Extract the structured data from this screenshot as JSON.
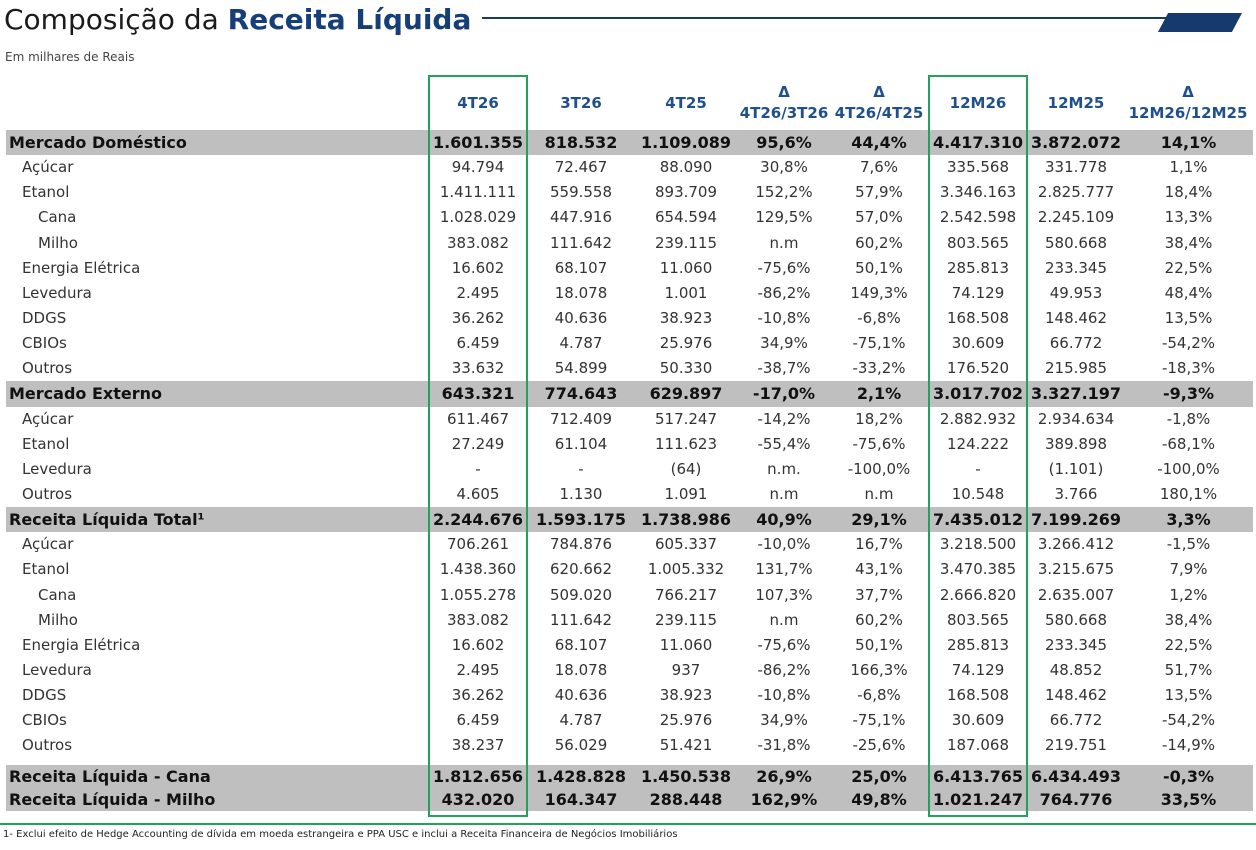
{
  "title": {
    "normal": "Composição da",
    "bold": "Receita Líquida"
  },
  "subtitle": "Em milhares de Reais",
  "colors": {
    "accent": "#173a6e",
    "highlight_box": "#23a05c",
    "section_bg": "#bfbfbf",
    "header_text": "#1f4f8e"
  },
  "headers": {
    "c1": [
      "4T26"
    ],
    "c2": [
      "3T26"
    ],
    "c3": [
      "4T25"
    ],
    "c4": [
      "Δ",
      "4T26/3T26"
    ],
    "c5": [
      "Δ",
      "4T26/4T25"
    ],
    "c6": [
      "12M26"
    ],
    "c7": [
      "12M25"
    ],
    "c8": [
      "Δ",
      "12M26/12M25"
    ]
  },
  "rows": [
    {
      "label": "Mercado Doméstico",
      "values": [
        "1.601.355",
        "818.532",
        "1.109.089",
        "95,6%",
        "44,4%",
        "4.417.310",
        "3.872.072",
        "14,1%"
      ]
    },
    {
      "label": "Açúcar",
      "values": [
        "94.794",
        "72.467",
        "88.090",
        "30,8%",
        "7,6%",
        "335.568",
        "331.778",
        "1,1%"
      ]
    },
    {
      "label": "Etanol",
      "values": [
        "1.411.111",
        "559.558",
        "893.709",
        "152,2%",
        "57,9%",
        "3.346.163",
        "2.825.777",
        "18,4%"
      ]
    },
    {
      "label": "Cana",
      "values": [
        "1.028.029",
        "447.916",
        "654.594",
        "129,5%",
        "57,0%",
        "2.542.598",
        "2.245.109",
        "13,3%"
      ]
    },
    {
      "label": "Milho",
      "values": [
        "383.082",
        "111.642",
        "239.115",
        "n.m",
        "60,2%",
        "803.565",
        "580.668",
        "38,4%"
      ]
    },
    {
      "label": "Energia Elétrica",
      "values": [
        "16.602",
        "68.107",
        "11.060",
        "-75,6%",
        "50,1%",
        "285.813",
        "233.345",
        "22,5%"
      ]
    },
    {
      "label": "Levedura",
      "values": [
        "2.495",
        "18.078",
        "1.001",
        "-86,2%",
        "149,3%",
        "74.129",
        "49.953",
        "48,4%"
      ]
    },
    {
      "label": "DDGS",
      "values": [
        "36.262",
        "40.636",
        "38.923",
        "-10,8%",
        "-6,8%",
        "168.508",
        "148.462",
        "13,5%"
      ]
    },
    {
      "label": "CBIOs",
      "values": [
        "6.459",
        "4.787",
        "25.976",
        "34,9%",
        "-75,1%",
        "30.609",
        "66.772",
        "-54,2%"
      ]
    },
    {
      "label": "Outros",
      "values": [
        "33.632",
        "54.899",
        "50.330",
        "-38,7%",
        "-33,2%",
        "176.520",
        "215.985",
        "-18,3%"
      ]
    },
    {
      "label": "Mercado Externo",
      "values": [
        "643.321",
        "774.643",
        "629.897",
        "-17,0%",
        "2,1%",
        "3.017.702",
        "3.327.197",
        "-9,3%"
      ]
    },
    {
      "label": "Açúcar",
      "values": [
        "611.467",
        "712.409",
        "517.247",
        "-14,2%",
        "18,2%",
        "2.882.932",
        "2.934.634",
        "-1,8%"
      ]
    },
    {
      "label": "Etanol",
      "values": [
        "27.249",
        "61.104",
        "111.623",
        "-55,4%",
        "-75,6%",
        "124.222",
        "389.898",
        "-68,1%"
      ]
    },
    {
      "label": "Levedura",
      "values": [
        "-",
        "-",
        "(64)",
        "n.m.",
        "-100,0%",
        "-",
        "(1.101)",
        "-100,0%"
      ]
    },
    {
      "label": "Outros",
      "values": [
        "4.605",
        "1.130",
        "1.091",
        "n.m",
        "n.m",
        "10.548",
        "3.766",
        "180,1%"
      ]
    },
    {
      "label": "Receita Líquida Total¹",
      "values": [
        "2.244.676",
        "1.593.175",
        "1.738.986",
        "40,9%",
        "29,1%",
        "7.435.012",
        "7.199.269",
        "3,3%"
      ]
    },
    {
      "label": "Açúcar",
      "values": [
        "706.261",
        "784.876",
        "605.337",
        "-10,0%",
        "16,7%",
        "3.218.500",
        "3.266.412",
        "-1,5%"
      ]
    },
    {
      "label": "Etanol",
      "values": [
        "1.438.360",
        "620.662",
        "1.005.332",
        "131,7%",
        "43,1%",
        "3.470.385",
        "3.215.675",
        "7,9%"
      ]
    },
    {
      "label": "Cana",
      "values": [
        "1.055.278",
        "509.020",
        "766.217",
        "107,3%",
        "37,7%",
        "2.666.820",
        "2.635.007",
        "1,2%"
      ]
    },
    {
      "label": "Milho",
      "values": [
        "383.082",
        "111.642",
        "239.115",
        "n.m",
        "60,2%",
        "803.565",
        "580.668",
        "38,4%"
      ]
    },
    {
      "label": "Energia Elétrica",
      "values": [
        "16.602",
        "68.107",
        "11.060",
        "-75,6%",
        "50,1%",
        "285.813",
        "233.345",
        "22,5%"
      ]
    },
    {
      "label": "Levedura",
      "values": [
        "2.495",
        "18.078",
        "937",
        "-86,2%",
        "166,3%",
        "74.129",
        "48.852",
        "51,7%"
      ]
    },
    {
      "label": "DDGS",
      "values": [
        "36.262",
        "40.636",
        "38.923",
        "-10,8%",
        "-6,8%",
        "168.508",
        "148.462",
        "13,5%"
      ]
    },
    {
      "label": "CBIOs",
      "values": [
        "6.459",
        "4.787",
        "25.976",
        "34,9%",
        "-75,1%",
        "30.609",
        "66.772",
        "-54,2%"
      ]
    },
    {
      "label": "Outros",
      "values": [
        "38.237",
        "56.029",
        "51.421",
        "-31,8%",
        "-25,6%",
        "187.068",
        "219.751",
        "-14,9%"
      ]
    },
    {
      "label": "Receita Líquida - Cana",
      "values": [
        "1.812.656",
        "1.428.828",
        "1.450.538",
        "26,9%",
        "25,0%",
        "6.413.765",
        "6.434.493",
        "-0,3%"
      ]
    },
    {
      "label": "Receita Líquida - Milho",
      "values": [
        "432.020",
        "164.347",
        "288.448",
        "162,9%",
        "49,8%",
        "1.021.247",
        "764.776",
        "33,5%"
      ]
    }
  ],
  "footnote": "1- Exclui efeito de Hedge Accounting de dívida em moeda estrangeira e PPA USC e inclui a Receita Financeira de Negócios Imobiliários"
}
